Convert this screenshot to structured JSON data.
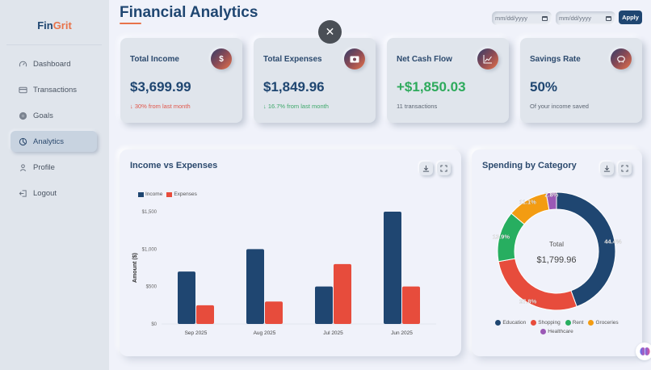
{
  "app": {
    "logo_part1": "Fin",
    "logo_part2": "Grit"
  },
  "sidebar": {
    "items": [
      {
        "label": "Dashboard",
        "icon": "gauge-icon",
        "active": false
      },
      {
        "label": "Transactions",
        "icon": "credit-card-icon",
        "active": false
      },
      {
        "label": "Goals",
        "icon": "target-icon",
        "active": false
      },
      {
        "label": "Analytics",
        "icon": "pie-chart-icon",
        "active": true
      },
      {
        "label": "Profile",
        "icon": "user-icon",
        "active": false
      },
      {
        "label": "Logout",
        "icon": "logout-icon",
        "active": false
      }
    ]
  },
  "header": {
    "title": "Financial Analytics",
    "start_date_placeholder": "mm/dd/yyyy",
    "end_date_placeholder": "mm/dd/yyyy",
    "apply_label": "Apply"
  },
  "stats": [
    {
      "label": "Total Income",
      "value": "$3,699.99",
      "sub": "↓  30% from last month",
      "icon": "dollar-icon",
      "glyph": "$"
    },
    {
      "label": "Total Expenses",
      "value": "$1,849.96",
      "sub": "↓  16.7% from last month",
      "icon": "money-bill-icon"
    },
    {
      "label": "Net Cash Flow",
      "value": "+$1,850.03",
      "sub": "11 transactions",
      "icon": "line-chart-icon"
    },
    {
      "label": "Savings Rate",
      "value": "50%",
      "sub": "Of your income saved",
      "icon": "piggy-bank-icon"
    }
  ],
  "close_button": {
    "glyph": "✕"
  },
  "income_panel": {
    "title": "Income vs Expenses"
  },
  "category_panel": {
    "title": "Spending by Category",
    "center_label": "Total",
    "center_value": "$1,799.96"
  },
  "colors": {
    "income": "#1f4671",
    "expenses": "#e74c3c",
    "education": "#1f4671",
    "shopping": "#e74c3c",
    "rent": "#27ae60",
    "groceries": "#f39c12",
    "healthcare": "#9b59b6",
    "accent": "#e8734a"
  },
  "chart_data": [
    {
      "type": "bar",
      "title": "Income vs Expenses",
      "categories": [
        "Sep 2025",
        "Aug 2025",
        "Jul 2025",
        "Jun 2025"
      ],
      "series": [
        {
          "name": "Income",
          "values": [
            700,
            1000,
            500,
            1500
          ]
        },
        {
          "name": "Expenses",
          "values": [
            250,
            300,
            800,
            500
          ]
        }
      ],
      "xlabel": "",
      "ylabel": "Amount ($)",
      "ylim": [
        0,
        1500
      ],
      "yticks": [
        "$0",
        "$500",
        "$1,000",
        "$1,500"
      ],
      "legend_position": "top-left",
      "grid": false
    },
    {
      "type": "pie",
      "title": "Spending by Category",
      "donut": true,
      "categories": [
        "Education",
        "Shopping",
        "Rent",
        "Groceries",
        "Healthcare"
      ],
      "values": [
        44.4,
        27.8,
        13.9,
        11.1,
        2.8
      ],
      "labels": [
        "44.4%",
        "27.8%",
        "13.9%",
        "11.1%",
        "2.8%"
      ],
      "center_text": [
        "Total",
        "$1,799.96"
      ],
      "legend_position": "bottom"
    }
  ]
}
